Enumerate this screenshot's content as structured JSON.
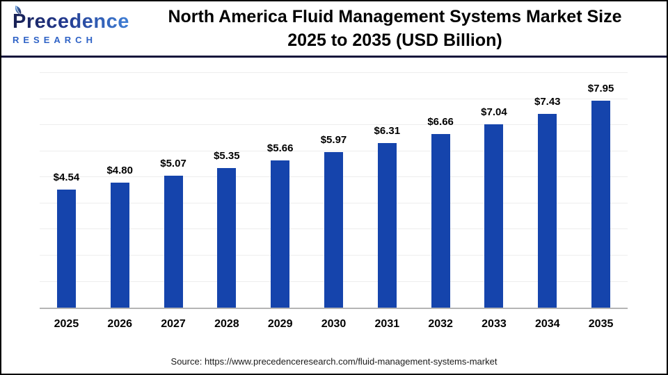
{
  "brand": {
    "name": "Precedence",
    "subtitle": "RESEARCH"
  },
  "header": {
    "title_line1": "North America Fluid Management Systems Market Size",
    "title_line2": "2025 to 2035 (USD Billion)"
  },
  "footer": {
    "source": "Source: https://www.precedenceresearch.com/fluid-management-systems-market"
  },
  "colors": {
    "bar": "#1544ac",
    "header_divider": "#13123b",
    "gridline": "#ededed",
    "axis_line": "#b5b5b5",
    "logo_dark": "#181f52",
    "logo_light": "#3f7fd6",
    "research_blue": "#2e62c6"
  },
  "chart_data": {
    "type": "bar",
    "title": "North America Fluid Management Systems Market Size 2025 to 2035 (USD Billion)",
    "categories": [
      "2025",
      "2026",
      "2027",
      "2028",
      "2029",
      "2030",
      "2031",
      "2032",
      "2033",
      "2034",
      "2035"
    ],
    "values": [
      4.54,
      4.8,
      5.07,
      5.35,
      5.66,
      5.97,
      6.31,
      6.66,
      7.04,
      7.43,
      7.95
    ],
    "value_prefix": "$",
    "value_decimals": 2,
    "xlabel": "",
    "ylabel": "",
    "ylim": [
      0,
      9.33
    ],
    "gridline_values": [
      1,
      2,
      3,
      4,
      5,
      6,
      7,
      8,
      9
    ],
    "grid": "horizontal",
    "legend": "none"
  }
}
